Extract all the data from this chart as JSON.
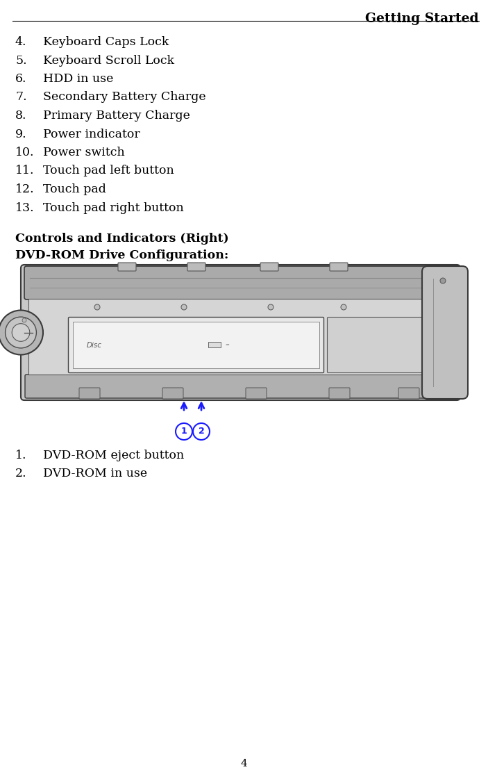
{
  "title": "Getting Started",
  "page_number": "4",
  "list_items": [
    {
      "num": "4.",
      "text": "Keyboard Caps Lock"
    },
    {
      "num": "5.",
      "text": "Keyboard Scroll Lock"
    },
    {
      "num": "6.",
      "text": "HDD in use"
    },
    {
      "num": "7.",
      "text": "Secondary Battery Charge"
    },
    {
      "num": "8.",
      "text": "Primary Battery Charge"
    },
    {
      "num": "9.",
      "text": "Power indicator"
    },
    {
      "num": "10.",
      "text": "Power switch"
    },
    {
      "num": "11.",
      "text": "Touch pad left button"
    },
    {
      "num": "12.",
      "text": "Touch pad"
    },
    {
      "num": "13.",
      "text": "Touch pad right button"
    }
  ],
  "section_heading1": "Controls and Indicators (Right)",
  "section_heading2": "DVD-ROM Drive Configuration:",
  "dvd_list": [
    {
      "num": "1.",
      "text": "DVD-ROM eject button"
    },
    {
      "num": "2.",
      "text": "DVD-ROM in use"
    }
  ],
  "bg_color": "#ffffff",
  "text_color": "#000000",
  "blue_color": "#1a1aff",
  "list_font_size": 12.5,
  "heading_font_size": 12.5,
  "title_font_size": 13.5
}
